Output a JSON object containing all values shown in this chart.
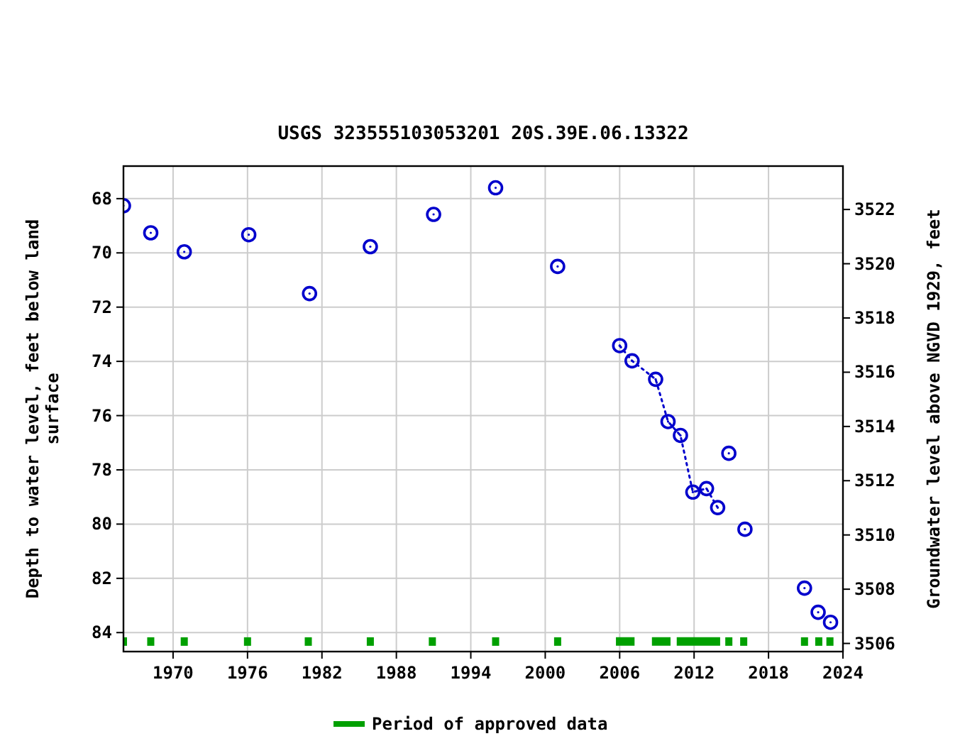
{
  "chart_data": {
    "type": "scatter",
    "title": "USGS 323555103053201 20S.39E.06.13322",
    "ylabel": "Depth to water level, feet below land surface",
    "y2label": "Groundwater level above NGVD 1929, feet",
    "series": [
      {
        "marker": "circle",
        "color": "#0000cc",
        "x": [
          1966.0,
          1968.2,
          1970.9,
          1976.1,
          1981.0,
          1985.9,
          1991.0,
          1996.0,
          2001.0,
          2006.0,
          2007.0,
          2008.9,
          2009.9,
          2010.9,
          2011.9,
          2013.0,
          2013.9,
          2014.8,
          2016.1,
          2020.9,
          2022.0,
          2023.0
        ],
        "values": [
          68.26,
          69.26,
          69.96,
          69.33,
          71.5,
          69.77,
          68.58,
          67.6,
          70.5,
          73.42,
          73.98,
          74.66,
          76.22,
          76.73,
          78.82,
          78.69,
          79.39,
          77.39,
          80.19,
          82.36,
          83.25,
          83.62
        ]
      },
      {
        "type": "line",
        "color": "#0000cc",
        "line_style": "dotted",
        "x": [
          2006.0,
          2007.0,
          2008.9,
          2009.9,
          2010.9,
          2011.9,
          2013.0,
          2013.9
        ],
        "values": [
          73.42,
          73.98,
          74.66,
          76.22,
          76.73,
          78.82,
          78.69,
          79.39
        ]
      },
      {
        "marker": "square",
        "name": "Period of approved data",
        "color": "#00a000",
        "x": [
          1966.0,
          1968.2,
          1970.9,
          1976.0,
          1980.9,
          1985.9,
          1990.9,
          1996.0,
          2001.0,
          2014.8,
          2016.0,
          2020.9,
          2022.05,
          2022.95
        ],
        "values": [
          84.33,
          84.33,
          84.33,
          84.33,
          84.33,
          84.33,
          84.33,
          84.33,
          84.33,
          84.33,
          84.33,
          84.33,
          84.33,
          84.33
        ]
      },
      {
        "type": "line",
        "color": "#00a000",
        "line_style": "solid",
        "x": [
          2005.7,
          2007.2,
          null,
          2008.6,
          2010.1,
          null,
          2010.6,
          2014.1
        ],
        "values": [
          84.33,
          84.33,
          null,
          84.33,
          84.33,
          null,
          84.33,
          84.33
        ]
      }
    ],
    "xlim": [
      1966,
      2024
    ],
    "xticks": [
      1970,
      1976,
      1982,
      1988,
      1994,
      2000,
      2006,
      2012,
      2018,
      2024
    ],
    "ylim": [
      84.7,
      66.8
    ],
    "yticks": [
      68,
      70,
      72,
      74,
      76,
      78,
      80,
      82,
      84
    ],
    "y2lim": [
      3505.7,
      3523.6
    ],
    "y2ticks": [
      3506,
      3508,
      3510,
      3512,
      3514,
      3516,
      3518,
      3520,
      3522
    ],
    "grid": true,
    "legend": "bottom"
  }
}
